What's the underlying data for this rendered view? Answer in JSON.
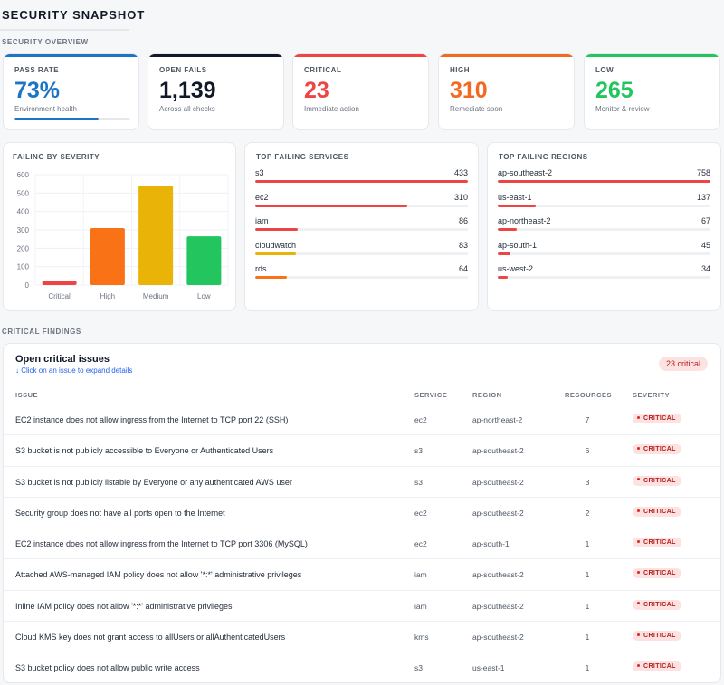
{
  "page": {
    "title": "SECURITY SNAPSHOT"
  },
  "overview": {
    "section_label": "SECURITY OVERVIEW",
    "cards": [
      {
        "label": "PASS RATE",
        "value": "73%",
        "sub": "Environment health",
        "color": "#1b74c4",
        "progress_percent": 73
      },
      {
        "label": "OPEN FAILS",
        "value": "1,139",
        "sub": "Across all checks",
        "color": "#111827"
      },
      {
        "label": "CRITICAL",
        "value": "23",
        "sub": "Immediate action",
        "color": "#ef4444"
      },
      {
        "label": "HIGH",
        "value": "310",
        "sub": "Remediate soon",
        "color": "#f26a21"
      },
      {
        "label": "LOW",
        "value": "265",
        "sub": "Monitor & review",
        "color": "#22c55e"
      }
    ]
  },
  "severity_chart": {
    "title": "FAILING BY SEVERITY",
    "chart_data": {
      "type": "bar",
      "categories": [
        "Critical",
        "High",
        "Medium",
        "Low"
      ],
      "values": [
        23,
        310,
        541,
        265
      ],
      "colors": [
        "#ef4444",
        "#f97316",
        "#eab308",
        "#22c55e"
      ],
      "ylim": [
        0,
        600
      ],
      "yticks": [
        0,
        100,
        200,
        300,
        400,
        500,
        600
      ],
      "grid": true
    }
  },
  "services": {
    "title": "TOP FAILING SERVICES",
    "max": 433,
    "items": [
      {
        "name": "s3",
        "count": 433,
        "color": "#ef4444"
      },
      {
        "name": "ec2",
        "count": 310,
        "color": "#ef4444"
      },
      {
        "name": "iam",
        "count": 86,
        "color": "#ef4444"
      },
      {
        "name": "cloudwatch",
        "count": 83,
        "color": "#eab308"
      },
      {
        "name": "rds",
        "count": 64,
        "color": "#f97316"
      }
    ]
  },
  "regions": {
    "title": "TOP FAILING REGIONS",
    "max": 758,
    "items": [
      {
        "name": "ap-southeast-2",
        "count": 758,
        "color": "#ef4444"
      },
      {
        "name": "us-east-1",
        "count": 137,
        "color": "#ef4444"
      },
      {
        "name": "ap-northeast-2",
        "count": 67,
        "color": "#ef4444"
      },
      {
        "name": "ap-south-1",
        "count": 45,
        "color": "#ef4444"
      },
      {
        "name": "us-west-2",
        "count": 34,
        "color": "#ef4444"
      }
    ]
  },
  "critical": {
    "section_label": "CRITICAL FINDINGS",
    "title": "Open critical issues",
    "hint": "↓ Click on an issue to expand details",
    "badge": "23 critical",
    "columns": {
      "issue": "ISSUE",
      "service": "SERVICE",
      "region": "REGION",
      "resources": "RESOURCES",
      "severity": "SEVERITY"
    },
    "rows": [
      {
        "issue": "EC2 instance does not allow ingress from the Internet to TCP port 22 (SSH)",
        "service": "ec2",
        "region": "ap-northeast-2",
        "resources": "7",
        "severity": "CRITICAL"
      },
      {
        "issue": "S3 bucket is not publicly accessible to Everyone or Authenticated Users",
        "service": "s3",
        "region": "ap-southeast-2",
        "resources": "6",
        "severity": "CRITICAL"
      },
      {
        "issue": "S3 bucket is not publicly listable by Everyone or any authenticated AWS user",
        "service": "s3",
        "region": "ap-southeast-2",
        "resources": "3",
        "severity": "CRITICAL"
      },
      {
        "issue": "Security group does not have all ports open to the Internet",
        "service": "ec2",
        "region": "ap-southeast-2",
        "resources": "2",
        "severity": "CRITICAL"
      },
      {
        "issue": "EC2 instance does not allow ingress from the Internet to TCP port 3306 (MySQL)",
        "service": "ec2",
        "region": "ap-south-1",
        "resources": "1",
        "severity": "CRITICAL"
      },
      {
        "issue": "Attached AWS-managed IAM policy does not allow '*:*' administrative privileges",
        "service": "iam",
        "region": "ap-southeast-2",
        "resources": "1",
        "severity": "CRITICAL"
      },
      {
        "issue": "Inline IAM policy does not allow '*:*' administrative privileges",
        "service": "iam",
        "region": "ap-southeast-2",
        "resources": "1",
        "severity": "CRITICAL"
      },
      {
        "issue": "Cloud KMS key does not grant access to allUsers or allAuthenticatedUsers",
        "service": "kms",
        "region": "ap-southeast-2",
        "resources": "1",
        "severity": "CRITICAL"
      },
      {
        "issue": "S3 bucket policy does not allow public write access",
        "service": "s3",
        "region": "us-east-1",
        "resources": "1",
        "severity": "CRITICAL"
      }
    ]
  }
}
